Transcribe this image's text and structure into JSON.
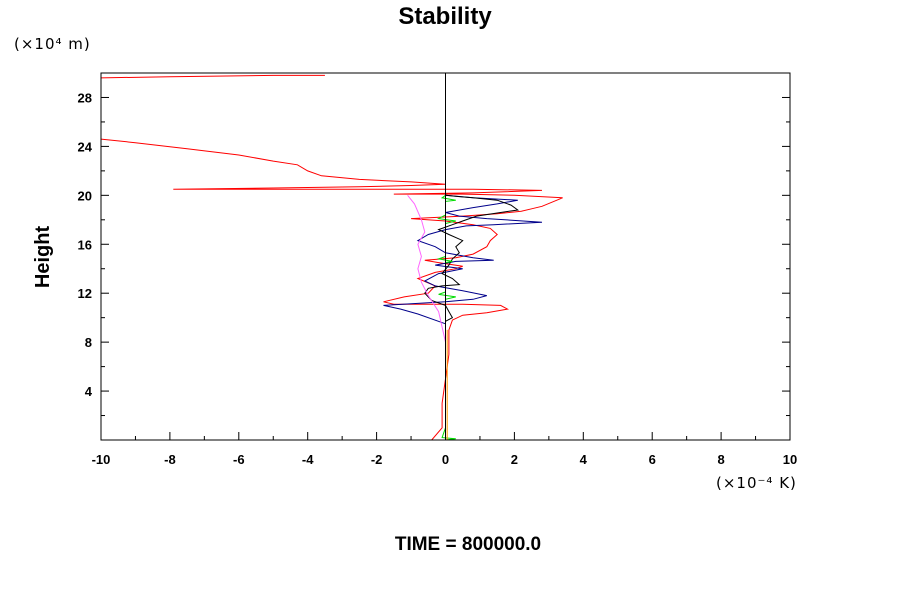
{
  "chart_data": {
    "type": "line",
    "title": "Stability",
    "ylabel": "Height",
    "y_unit": "(×10⁴ m)",
    "x_unit": "(×10⁻⁴ K)",
    "footer": "TIME = 800000.0",
    "xlim": [
      -10,
      10
    ],
    "ylim": [
      0,
      30
    ],
    "xticks": [
      -10,
      -8,
      -6,
      -4,
      -2,
      0,
      2,
      4,
      6,
      8,
      10
    ],
    "yticks": [
      4,
      8,
      12,
      16,
      20,
      24,
      28
    ],
    "grid": false,
    "series": [
      {
        "color": "#ff0000",
        "points": [
          [
            -0.4,
            0
          ],
          [
            -0.1,
            1
          ],
          [
            -0.1,
            3
          ],
          [
            0.0,
            5
          ],
          [
            0.1,
            7
          ],
          [
            0.1,
            9
          ],
          [
            0.2,
            9.8
          ],
          [
            0.5,
            10.2
          ],
          [
            1.2,
            10.4
          ],
          [
            1.8,
            10.7
          ],
          [
            1.6,
            11
          ],
          [
            0.5,
            11.1
          ],
          [
            -0.5,
            11.1
          ],
          [
            -1.5,
            11.1
          ],
          [
            -1.8,
            11.3
          ],
          [
            -1.2,
            11.7
          ],
          [
            -0.5,
            12.0
          ],
          [
            -0.3,
            12.6
          ],
          [
            -0.8,
            13.2
          ],
          [
            -0.3,
            13.7
          ],
          [
            0.3,
            14.0
          ],
          [
            0.5,
            14.2
          ],
          [
            -0.2,
            14.5
          ],
          [
            -0.6,
            14.7
          ],
          [
            0.3,
            14.9
          ],
          [
            0.8,
            15.2
          ],
          [
            1.2,
            15.8
          ],
          [
            1.3,
            16.3
          ],
          [
            1.5,
            16.8
          ],
          [
            1.3,
            17.3
          ],
          [
            0.8,
            17.6
          ],
          [
            0.0,
            17.9
          ],
          [
            -1.0,
            18.1
          ],
          [
            0.5,
            18.3
          ],
          [
            1.5,
            18.5
          ],
          [
            2.2,
            18.7
          ],
          [
            2.5,
            18.9
          ],
          [
            2.8,
            19.1
          ],
          [
            3.4,
            19.8
          ],
          [
            2.0,
            20.0
          ],
          [
            0.5,
            20.1
          ],
          [
            -1.5,
            20.1
          ],
          [
            0.8,
            20.2
          ],
          [
            2.8,
            20.4
          ],
          [
            0.8,
            20.5
          ],
          [
            -2.0,
            20.5
          ],
          [
            -4.0,
            20.5
          ],
          [
            -7.9,
            20.5
          ],
          [
            -5.0,
            20.6
          ],
          [
            -2.5,
            20.7
          ],
          [
            -1.0,
            20.8
          ],
          [
            0.0,
            20.9
          ],
          [
            -1.0,
            21.1
          ],
          [
            -2.5,
            21.3
          ],
          [
            -3.6,
            21.6
          ],
          [
            -4.0,
            22.0
          ],
          [
            -4.3,
            22.5
          ],
          [
            -5.0,
            22.8
          ],
          [
            -6.0,
            23.3
          ],
          [
            -7.5,
            23.8
          ],
          [
            -9.0,
            24.3
          ],
          [
            -10,
            24.6
          ]
        ]
      },
      {
        "color": "#ff0000",
        "points": [
          [
            -10,
            29.6
          ],
          [
            -8,
            29.7
          ],
          [
            -5,
            29.8
          ],
          [
            -3.5,
            29.8
          ]
        ]
      },
      {
        "color": "#00008b",
        "points": [
          [
            0.0,
            0
          ],
          [
            0.0,
            5
          ],
          [
            0.0,
            9.5
          ],
          [
            -0.8,
            10.3
          ],
          [
            -1.3,
            10.7
          ],
          [
            -1.8,
            11.0
          ],
          [
            0.0,
            11.3
          ],
          [
            0.8,
            11.5
          ],
          [
            1.2,
            11.8
          ],
          [
            0.5,
            12.2
          ],
          [
            -0.3,
            12.6
          ],
          [
            -0.6,
            13.0
          ],
          [
            -0.2,
            13.6
          ],
          [
            0.5,
            14.0
          ],
          [
            -0.3,
            14.3
          ],
          [
            0.3,
            14.6
          ],
          [
            1.4,
            14.7
          ],
          [
            0.8,
            14.9
          ],
          [
            0.0,
            15.3
          ],
          [
            -0.3,
            15.8
          ],
          [
            -0.8,
            16.3
          ],
          [
            -0.5,
            16.8
          ],
          [
            0.0,
            17.2
          ],
          [
            0.6,
            17.5
          ],
          [
            1.4,
            17.6
          ],
          [
            2.8,
            17.8
          ],
          [
            1.2,
            18.1
          ],
          [
            0.4,
            18.3
          ],
          [
            0.0,
            18.6
          ],
          [
            0.8,
            19.0
          ],
          [
            1.5,
            19.3
          ],
          [
            2.1,
            19.6
          ],
          [
            0.8,
            19.8
          ],
          [
            0.0,
            20.0
          ]
        ]
      },
      {
        "color": "#000000",
        "points": [
          [
            0.0,
            0
          ],
          [
            0.0,
            5
          ],
          [
            0.0,
            9.7
          ],
          [
            0.2,
            10.0
          ],
          [
            0.1,
            10.5
          ],
          [
            0.0,
            11.0
          ],
          [
            -0.4,
            11.4
          ],
          [
            -0.6,
            12.0
          ],
          [
            -0.5,
            12.4
          ],
          [
            -0.1,
            12.6
          ],
          [
            0.4,
            12.7
          ],
          [
            0.2,
            13.2
          ],
          [
            -0.1,
            13.6
          ],
          [
            0.1,
            14.3
          ],
          [
            0.2,
            14.8
          ],
          [
            0.4,
            15.3
          ],
          [
            0.3,
            15.8
          ],
          [
            0.5,
            16.3
          ],
          [
            0.1,
            16.8
          ],
          [
            -0.2,
            17.2
          ],
          [
            0.2,
            17.6
          ],
          [
            0.5,
            17.9
          ],
          [
            0.9,
            18.3
          ],
          [
            1.6,
            18.6
          ],
          [
            2.1,
            18.8
          ],
          [
            1.9,
            19.2
          ],
          [
            1.5,
            19.6
          ],
          [
            0.8,
            19.8
          ],
          [
            0.4,
            19.9
          ],
          [
            0.0,
            20.0
          ]
        ]
      },
      {
        "color": "#ff66ff",
        "points": [
          [
            0.0,
            0
          ],
          [
            0.0,
            8
          ],
          [
            -0.2,
            10.5
          ],
          [
            -0.5,
            11.8
          ],
          [
            -0.7,
            12.9
          ],
          [
            -0.8,
            14.0
          ],
          [
            -0.7,
            15.0
          ],
          [
            -0.8,
            16.0
          ],
          [
            -0.6,
            17.0
          ],
          [
            -0.7,
            18.0
          ],
          [
            -0.9,
            19.3
          ],
          [
            -1.1,
            20.0
          ]
        ]
      },
      {
        "color": "#00dd00",
        "points": [
          [
            0.0,
            0
          ],
          [
            0.3,
            0.1
          ],
          [
            -0.1,
            0.2
          ],
          [
            0.0,
            1
          ],
          [
            0.0,
            11.5
          ],
          [
            0.3,
            11.7
          ],
          [
            -0.2,
            11.9
          ],
          [
            0.0,
            12.1
          ],
          [
            0.0,
            14.5
          ],
          [
            0.2,
            14.6
          ],
          [
            -0.2,
            14.8
          ],
          [
            0.0,
            15.0
          ],
          [
            0.0,
            17.7
          ],
          [
            0.3,
            17.9
          ],
          [
            -0.2,
            18.1
          ],
          [
            0.0,
            18.4
          ],
          [
            0.0,
            19.5
          ],
          [
            0.3,
            19.6
          ],
          [
            -0.1,
            19.8
          ],
          [
            0.0,
            20.0
          ]
        ]
      },
      {
        "color": "#ff9900",
        "points": [
          [
            0.05,
            0
          ],
          [
            0.05,
            9
          ]
        ]
      },
      {
        "color": "#000000",
        "points": [
          [
            0,
            0
          ],
          [
            0,
            30
          ]
        ]
      }
    ]
  }
}
